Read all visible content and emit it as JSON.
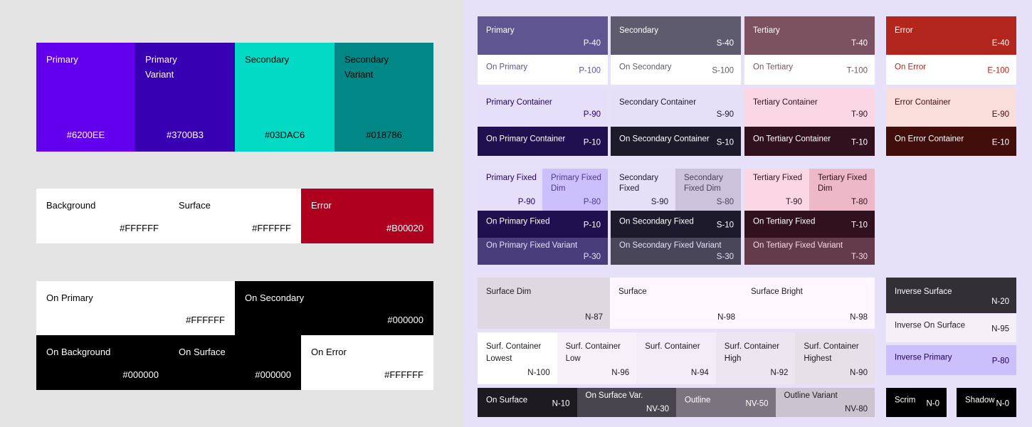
{
  "baseline_palette": {
    "tiles": [
      {
        "label": "Primary",
        "code": "#6200EE",
        "bg": "#6200EE",
        "fg": "#FFFFFF"
      },
      {
        "label": "Primary\nVariant",
        "code": "#3700B3",
        "bg": "#3700B3",
        "fg": "#FFFFFF"
      },
      {
        "label": "Secondary",
        "code": "#03DAC6",
        "bg": "#03DAC6",
        "fg": "#000000"
      },
      {
        "label": "Secondary\nVariant",
        "code": "#018786",
        "bg": "#018786",
        "fg": "#000000"
      },
      {
        "label": "Background",
        "code": "#FFFFFF",
        "bg": "#FFFFFF",
        "fg": "#000000"
      },
      {
        "label": "Surface",
        "code": "#FFFFFF",
        "bg": "#FFFFFF",
        "fg": "#000000"
      },
      {
        "label": "Error",
        "code": "#B00020",
        "bg": "#B00020",
        "fg": "#FFFFFF"
      },
      {
        "label": "On Primary",
        "code": "#FFFFFF",
        "bg": "#FFFFFF",
        "fg": "#000000"
      },
      {
        "label": "On Secondary",
        "code": "#000000",
        "bg": "#000000",
        "fg": "#FFFFFF"
      },
      {
        "label": "On Background",
        "code": "#000000",
        "bg": "#000000",
        "fg": "#FFFFFF"
      },
      {
        "label": "On Surface",
        "code": "#000000",
        "bg": "#000000",
        "fg": "#FFFFFF"
      },
      {
        "label": "On Error",
        "code": "#FFFFFF",
        "bg": "#FFFFFF",
        "fg": "#000000"
      }
    ]
  },
  "m3_palette": {
    "tiles": [
      {
        "label": "Primary",
        "code": "P-40",
        "bg": "#5F5591",
        "fg": "#FFFFFF"
      },
      {
        "label": "On Primary",
        "code": "P-100",
        "bg": "#FFFFFF",
        "fg": "#5F5591"
      },
      {
        "label": "Primary Container",
        "code": "P-90",
        "bg": "#E6DFFA",
        "fg": "#21005D"
      },
      {
        "label": "On Primary Container",
        "code": "P-10",
        "bg": "#1F1150",
        "fg": "#FFFFFF"
      },
      {
        "label": "Secondary",
        "code": "S-40",
        "bg": "#5F5B6E",
        "fg": "#FFFFFF"
      },
      {
        "label": "On Secondary",
        "code": "S-100",
        "bg": "#FFFFFF",
        "fg": "#5F5B6E"
      },
      {
        "label": "Secondary Container",
        "code": "S-90",
        "bg": "#E6DFF8",
        "fg": "#1D192B"
      },
      {
        "label": "On Secondary Container",
        "code": "S-10",
        "bg": "#1D1A2C",
        "fg": "#FFFFFF"
      },
      {
        "label": "Tertiary",
        "code": "T-40",
        "bg": "#7D5260",
        "fg": "#FFFFFF"
      },
      {
        "label": "On Tertiary",
        "code": "T-100",
        "bg": "#FFFFFF",
        "fg": "#7D5260"
      },
      {
        "label": "Tertiary Container",
        "code": "T-90",
        "bg": "#FBD7E5",
        "fg": "#31111D"
      },
      {
        "label": "On Tertiary Container",
        "code": "T-10",
        "bg": "#31111D",
        "fg": "#FFFFFF"
      },
      {
        "label": "Error",
        "code": "E-40",
        "bg": "#B3261E",
        "fg": "#FFFFFF"
      },
      {
        "label": "On Error",
        "code": "E-100",
        "bg": "#FFFFFF",
        "fg": "#B3261E"
      },
      {
        "label": "Error Container",
        "code": "E-90",
        "bg": "#F9DEDC",
        "fg": "#410E0B"
      },
      {
        "label": "On Error Container",
        "code": "E-10",
        "bg": "#410E0B",
        "fg": "#FFFFFF"
      },
      {
        "label": "Primary Fixed",
        "code": "P-90",
        "bg": "#E6DFFA",
        "fg": "#21005D"
      },
      {
        "label": "Primary Fixed\nDim",
        "code": "P-80",
        "bg": "#CCC0FC",
        "fg": "#4F378B"
      },
      {
        "label": "Secondary\nFixed",
        "code": "S-90",
        "bg": "#E6DFF8",
        "fg": "#1D192B"
      },
      {
        "label": "Secondary\nFixed Dim",
        "code": "S-80",
        "bg": "#CBC3DC",
        "fg": "#4A4458"
      },
      {
        "label": "Tertiary Fixed",
        "code": "T-90",
        "bg": "#FBD7E5",
        "fg": "#31111D"
      },
      {
        "label": "Tertiary Fixed\nDim",
        "code": "T-80",
        "bg": "#EDB8C8",
        "fg": "#31111D"
      },
      {
        "label": "On Primary Fixed",
        "code": "P-10",
        "bg": "#1F1150",
        "fg": "#FFFFFF"
      },
      {
        "label": "On Secondary Fixed",
        "code": "S-10",
        "bg": "#1D1A2C",
        "fg": "#FFFFFF"
      },
      {
        "label": "On Tertiary Fixed",
        "code": "T-10",
        "bg": "#31111D",
        "fg": "#FFFFFF"
      },
      {
        "label": "On Primary Fixed Variant",
        "code": "P-30",
        "bg": "#4A3D7C",
        "fg": "#E6DFFA"
      },
      {
        "label": "On Secondary Fixed Variant",
        "code": "S-30",
        "bg": "#4A4659",
        "fg": "#E6DFF8"
      },
      {
        "label": "On Tertiary Fixed Variant",
        "code": "T-30",
        "bg": "#633B4B",
        "fg": "#FBD7E5"
      },
      {
        "label": "Surface Dim",
        "code": "N-87",
        "bg": "#DED8E1",
        "fg": "#1D1B20"
      },
      {
        "label": "Surface",
        "code": "N-98",
        "bg": "#FEF7FF",
        "fg": "#1D1B20"
      },
      {
        "label": "Surface Bright",
        "code": "N-98",
        "bg": "#FEF7FF",
        "fg": "#1D1B20"
      },
      {
        "label": "Surf. Container\nLowest",
        "code": "N-100",
        "bg": "#FFFFFF",
        "fg": "#1D1B20"
      },
      {
        "label": "Surf. Container\nLow",
        "code": "N-96",
        "bg": "#F7F2FA",
        "fg": "#1D1B20"
      },
      {
        "label": "Surf. Container",
        "code": "N-94",
        "bg": "#F3EDF7",
        "fg": "#1D1B20"
      },
      {
        "label": "Surf. Container\nHigh",
        "code": "N-92",
        "bg": "#ECE6F0",
        "fg": "#1D1B20"
      },
      {
        "label": "Surf. Container\nHighest",
        "code": "N-90",
        "bg": "#E6E0E9",
        "fg": "#1D1B20"
      },
      {
        "label": "On Surface",
        "code": "N-10",
        "bg": "#1D1B20",
        "fg": "#FFFFFF"
      },
      {
        "label": "On Surface Var.",
        "code": "NV-30",
        "bg": "#49454F",
        "fg": "#FFFFFF"
      },
      {
        "label": "Outline",
        "code": "NV-50",
        "bg": "#79747E",
        "fg": "#FFFFFF"
      },
      {
        "label": "Outline Variant",
        "code": "NV-80",
        "bg": "#CAC4D0",
        "fg": "#1D1B20"
      },
      {
        "label": "Inverse Surface",
        "code": "N-20",
        "bg": "#322F35",
        "fg": "#FFFFFF"
      },
      {
        "label": "Inverse On Surface",
        "code": "N-95",
        "bg": "#F5EFF7",
        "fg": "#1D1B20"
      },
      {
        "label": "Inverse Primary",
        "code": "P-80",
        "bg": "#CCC0FC",
        "fg": "#21005D"
      },
      {
        "label": "Scrim",
        "code": "N-0",
        "bg": "#000000",
        "fg": "#FFFFFF"
      },
      {
        "label": "Shadow",
        "code": "N-0",
        "bg": "#000000",
        "fg": "#FFFFFF"
      }
    ]
  }
}
